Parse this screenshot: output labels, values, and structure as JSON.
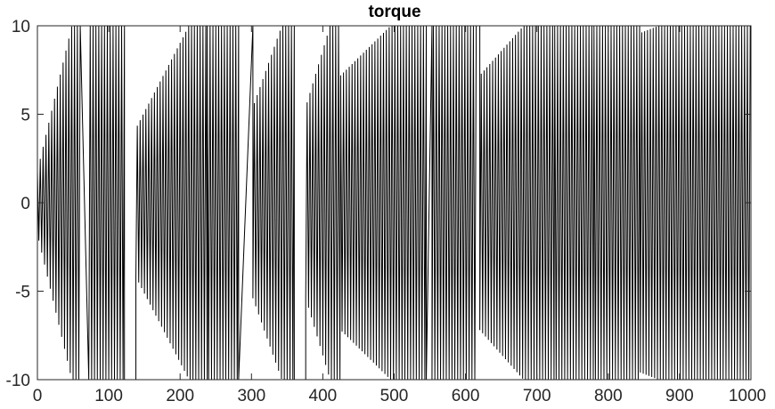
{
  "chart_data": {
    "type": "line",
    "title": "torque",
    "xlabel": "",
    "ylabel": "",
    "xlim": [
      0,
      1000
    ],
    "ylim": [
      -10,
      10
    ],
    "x_ticks": [
      0,
      100,
      200,
      300,
      400,
      500,
      600,
      700,
      800,
      900,
      1000
    ],
    "y_ticks": [
      -10,
      -5,
      0,
      5,
      10
    ],
    "x_tick_labels": [
      "0",
      "100",
      "200",
      "300",
      "400",
      "500",
      "600",
      "700",
      "800",
      "900",
      "1000"
    ],
    "y_tick_labels": [
      "-10",
      "-5",
      "0",
      "5",
      "10"
    ],
    "grid": false,
    "line_color": "#000000",
    "series": [
      {
        "sample_step": 2,
        "segments": [
          {
            "kind": "osc",
            "x_start": 0,
            "x_end": 60,
            "amp_start": 1.5,
            "amp_end": 10
          },
          {
            "kind": "ramp",
            "x_start": 60,
            "x_end": 72,
            "y_start": 10,
            "y_end": -10
          },
          {
            "kind": "osc",
            "x_start": 72,
            "x_end": 122,
            "amp_start": 10,
            "amp_end": 10
          },
          {
            "kind": "ramp",
            "x_start": 122,
            "x_end": 138,
            "y_start": -10,
            "y_end": -10
          },
          {
            "kind": "osc",
            "x_start": 138,
            "x_end": 238,
            "amp_start": 3.5,
            "amp_end": 10
          },
          {
            "kind": "osc",
            "x_start": 238,
            "x_end": 282,
            "amp_start": 10,
            "amp_end": 10
          },
          {
            "kind": "ramp",
            "x_start": 282,
            "x_end": 302,
            "y_start": -10,
            "y_end": 10
          },
          {
            "kind": "osc",
            "x_start": 302,
            "x_end": 360,
            "amp_start": 4.5,
            "amp_end": 10
          },
          {
            "kind": "ramp",
            "x_start": 360,
            "x_end": 376,
            "y_start": -10,
            "y_end": -10
          },
          {
            "kind": "osc",
            "x_start": 376,
            "x_end": 425,
            "amp_start": 4.5,
            "amp_end": 10
          },
          {
            "kind": "osc",
            "x_start": 425,
            "x_end": 545,
            "amp_start": 6,
            "amp_end": 10
          },
          {
            "kind": "ramp",
            "x_start": 545,
            "x_end": 553,
            "y_start": -10,
            "y_end": 10
          },
          {
            "kind": "osc",
            "x_start": 553,
            "x_end": 615,
            "amp_start": 10,
            "amp_end": 10
          },
          {
            "kind": "ramp",
            "x_start": 615,
            "x_end": 620,
            "y_start": 10,
            "y_end": 10
          },
          {
            "kind": "osc",
            "x_start": 620,
            "x_end": 725,
            "amp_start": 6,
            "amp_end": 10
          },
          {
            "kind": "osc",
            "x_start": 725,
            "x_end": 780,
            "amp_start": 10,
            "amp_end": 10
          },
          {
            "kind": "osc",
            "x_start": 780,
            "x_end": 845,
            "amp_start": 10,
            "amp_end": 10
          },
          {
            "kind": "osc",
            "x_start": 845,
            "x_end": 1000,
            "amp_start": 8,
            "amp_end": 10
          }
        ]
      }
    ]
  }
}
